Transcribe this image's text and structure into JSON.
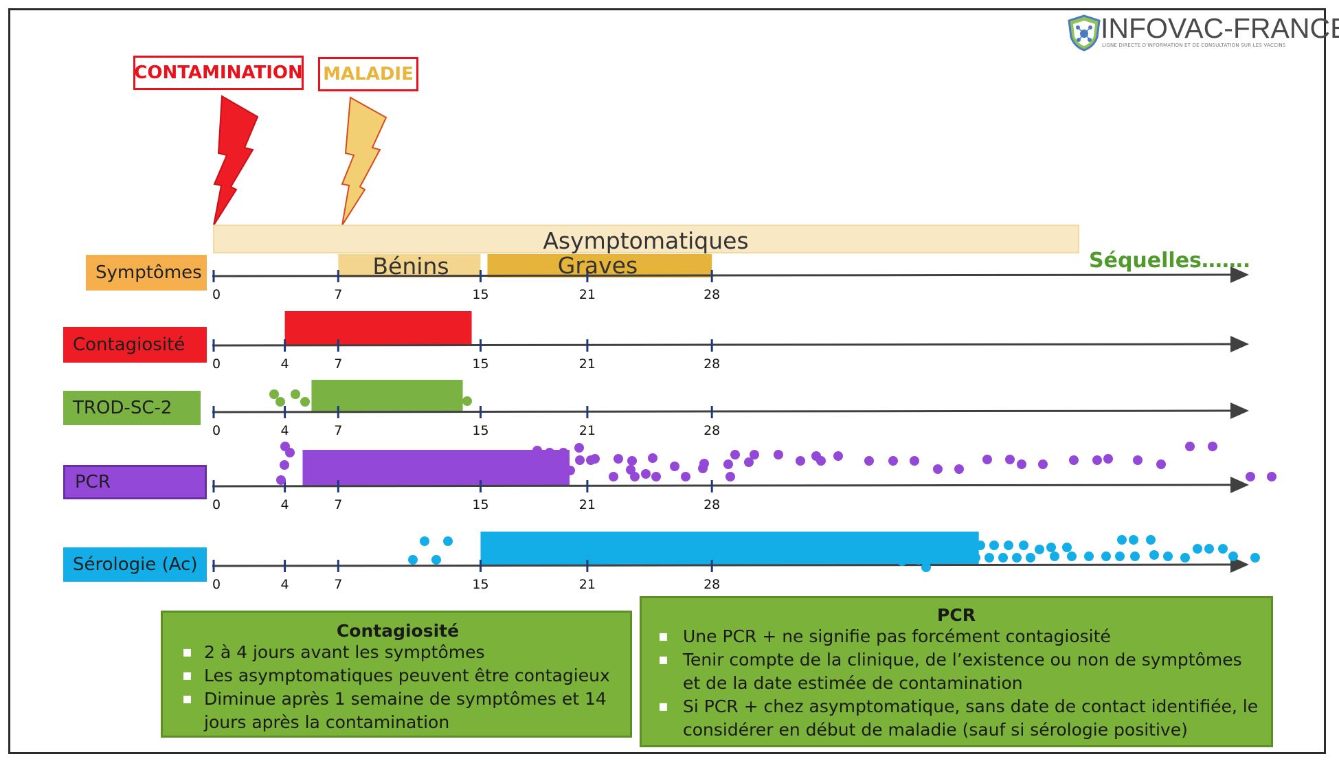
{
  "logo": {
    "name": "INFOVAC-FRANCE",
    "tagline": "LIGNE DIRECTE D'INFORMATION ET DE CONSULTATION SUR LES VACCINS"
  },
  "events": {
    "contamination": "CONTAMINATION",
    "maladie": "MALADIE"
  },
  "phases": {
    "asymptomatiques": "Asymptomatiques",
    "benins": "Bénins",
    "graves": "Graves",
    "sequelles": "Séquelles……."
  },
  "rows": [
    {
      "label": "Symptômes",
      "ticks": [
        "0",
        "7",
        "15",
        "21",
        "28"
      ]
    },
    {
      "label": "Contagiosité",
      "ticks": [
        "0",
        "4",
        "7",
        "15",
        "21",
        "28"
      ]
    },
    {
      "label": "TROD-SC-2",
      "ticks": [
        "0",
        "4",
        "7",
        "15",
        "21",
        "28"
      ]
    },
    {
      "label": "PCR",
      "ticks": [
        "0",
        "4",
        "7",
        "15",
        "21",
        "28"
      ]
    },
    {
      "label": "Sérologie (Ac)",
      "ticks": [
        "0",
        "4",
        "7",
        "15",
        "21",
        "28"
      ]
    }
  ],
  "periods": {
    "benins": [
      7,
      15
    ],
    "graves": [
      15,
      28
    ],
    "asymptomatiques": [
      0,
      56
    ],
    "contagiosite": [
      4,
      14.5
    ],
    "trod": [
      5.5,
      14
    ],
    "pcr": [
      5,
      20
    ],
    "serologie": [
      15,
      43
    ]
  },
  "colors": {
    "symptomes": "#f5b04d",
    "contagiosite": "#ee1c25",
    "trod": "#7ab343",
    "pcr": "#9348d8",
    "serologie": "#13aee8",
    "asymptomatiques": "#f8e8c4",
    "benins": "#f4d58d",
    "graves": "#e6b33b",
    "sequelles": "#4f9a2b",
    "contamination": "#e8111c",
    "maladie": "#e8b53a",
    "info": "#7bb23a"
  },
  "info_contagiosite": {
    "title": "Contagiosité",
    "items": [
      "2 à 4 jours avant les symptômes",
      "Les asymptomatiques peuvent être contagieux",
      "Diminue après 1 semaine de symptômes et 14 jours après la contamination"
    ]
  },
  "info_pcr": {
    "title": "PCR",
    "items": [
      "Une PCR + ne signifie pas forcément contagiosité",
      "Tenir compte de la clinique, de l’existence ou non de symptômes et de la date estimée de contamination",
      "Si PCR + chez asymptomatique, sans date de contact identifiée, le considérer en début de maladie (sauf si sérologie positive)"
    ]
  }
}
